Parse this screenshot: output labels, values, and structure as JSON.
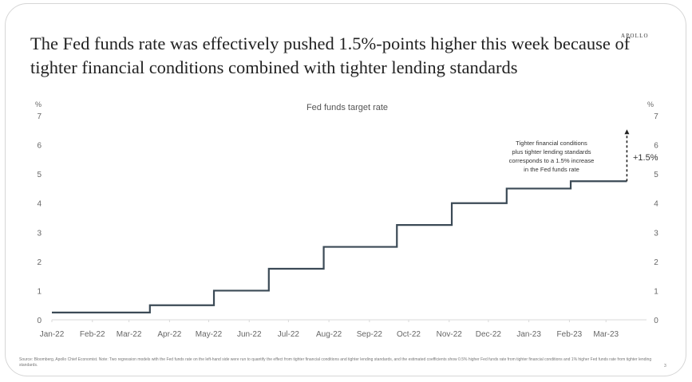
{
  "title": "The Fed funds rate was effectively pushed 1.5%-points higher this week because of tighter financial conditions combined with tighter lending standards",
  "logo": "APOLLO",
  "source": "Source: Bloomberg, Apollo Chief Economist. Note: Two regression models with the Fed funds rate on the left-hand side were run to quantify the effect from tighter financial conditions and tighter lending standards, and the estimated coefficients show 0.5% higher Fed funds rate from tighter financial conditions and 1% higher Fed funds rate from tighter lending standards.",
  "page_number": "3",
  "chart_data": {
    "type": "line",
    "title": "Fed funds target rate",
    "ylabel_left": "%",
    "ylabel_right": "%",
    "ylim": [
      0,
      7
    ],
    "yticks": [
      0,
      1,
      2,
      3,
      4,
      5,
      6,
      7
    ],
    "xlim": [
      "2022-01-01",
      "2023-04-01"
    ],
    "xticks": [
      "Jan-22",
      "Feb-22",
      "Mar-22",
      "Apr-22",
      "May-22",
      "Jun-22",
      "Jul-22",
      "Aug-22",
      "Sep-22",
      "Oct-22",
      "Nov-22",
      "Dec-22",
      "Jan-23",
      "Feb-23",
      "Mar-23"
    ],
    "grid": false,
    "step": true,
    "series": [
      {
        "color": "#3b4a56",
        "points": [
          [
            "2022-01-01",
            0.25
          ],
          [
            "2022-03-17",
            0.5
          ],
          [
            "2022-05-05",
            1.0
          ],
          [
            "2022-06-16",
            1.75
          ],
          [
            "2022-07-28",
            2.5
          ],
          [
            "2022-09-22",
            3.25
          ],
          [
            "2022-11-03",
            4.0
          ],
          [
            "2022-12-15",
            4.5
          ],
          [
            "2023-02-02",
            4.75
          ],
          [
            "2023-03-17",
            4.75
          ]
        ]
      }
    ],
    "annotation": {
      "text": [
        "Tighter financial conditions",
        "plus tighter lending standards",
        "corresponds to a 1.5% increase",
        "in the Fed funds rate"
      ],
      "arrow_from": 4.75,
      "arrow_to": 6.5,
      "date": "2023-03-17",
      "label": "+1.5%"
    }
  }
}
